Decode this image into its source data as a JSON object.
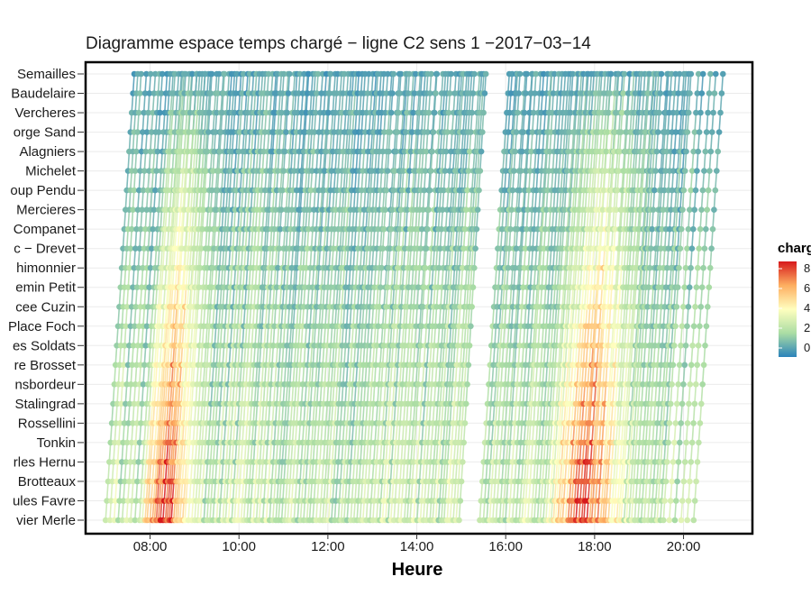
{
  "chart_data": {
    "type": "scatter",
    "title": "Diagramme espace temps chargé − ligne C2 sens 1 −2017−03−14",
    "xlabel": "Heure",
    "ylabel": "",
    "x_ticks": [
      "08:00",
      "10:00",
      "12:00",
      "14:00",
      "16:00",
      "18:00",
      "20:00"
    ],
    "x_range_hours": [
      6.55,
      21.55
    ],
    "stops": [
      "Semailles",
      "Baudelaire",
      "Vercheres",
      "orge Sand",
      "Alagniers",
      "Michelet",
      "oup Pendu",
      "Mercieres",
      "Companet",
      "c − Drevet",
      "himonnier",
      "emin Petit",
      "cee Cuzin",
      "Place Foch",
      "es Soldats",
      "re Brosset",
      "nsbordeur",
      "Stalingrad",
      "Rossellini",
      "Tonkin",
      "rles Hernu",
      "Brotteaux",
      "ules Favre",
      "vier Merle"
    ],
    "grid": true,
    "legend": {
      "title": "charge",
      "position": "right",
      "ticks": [
        "8",
        "6",
        "4",
        "2",
        "0"
      ],
      "colors": [
        "#2b83ba",
        "#abdda4",
        "#ffffbf",
        "#fdae61",
        "#d7191c"
      ]
    },
    "trips": {
      "first_departure": "07:00",
      "last_departure": "20:15",
      "gap_start": "15:00",
      "gap_end": "15:25",
      "travel_minutes": 38,
      "peak_am": "08:20",
      "peak_pm": "17:45"
    }
  }
}
